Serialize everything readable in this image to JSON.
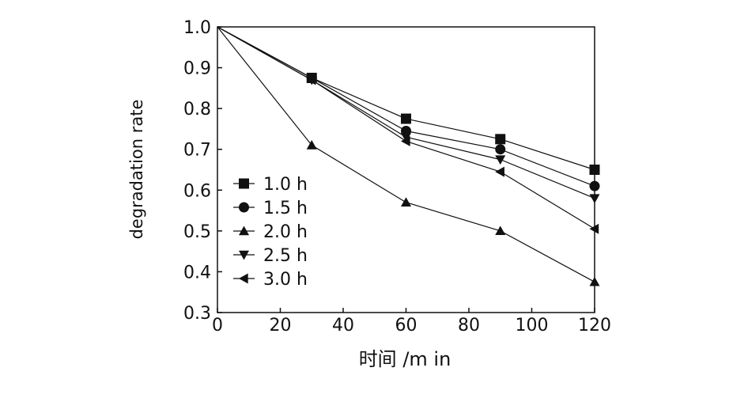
{
  "chart_data": {
    "type": "line",
    "xlabel": "时间 /m in",
    "ylabel": "degradation rate",
    "xlim": [
      0,
      120
    ],
    "ylim": [
      0.3,
      1.0
    ],
    "xticks": [
      "0",
      "20",
      "40",
      "60",
      "80",
      "100",
      "120"
    ],
    "yticks": [
      "0.3",
      "0.4",
      "0.5",
      "0.6",
      "0.7",
      "0.8",
      "0.9",
      "1.0"
    ],
    "grid": false,
    "legend_position": "left",
    "x": [
      0,
      30,
      60,
      90,
      120
    ],
    "series": [
      {
        "name": "1.0 h",
        "marker": "square",
        "values": [
          1.0,
          0.875,
          0.775,
          0.725,
          0.65
        ]
      },
      {
        "name": "1.5 h",
        "marker": "circle",
        "values": [
          1.0,
          0.875,
          0.745,
          0.7,
          0.61
        ]
      },
      {
        "name": "2.0 h",
        "marker": "triangle-up",
        "values": [
          1.0,
          0.71,
          0.57,
          0.5,
          0.375
        ]
      },
      {
        "name": "2.5 h",
        "marker": "triangle-down",
        "values": [
          1.0,
          0.87,
          0.73,
          0.675,
          0.58
        ]
      },
      {
        "name": "3.0 h",
        "marker": "triangle-left",
        "values": [
          1.0,
          0.87,
          0.72,
          0.645,
          0.505
        ]
      }
    ]
  }
}
